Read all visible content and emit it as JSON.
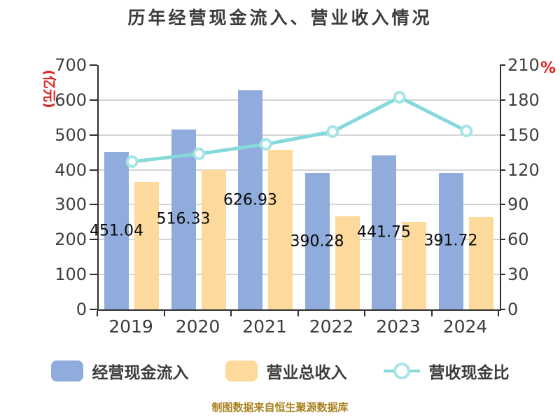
{
  "title": "历年经营现金流入、营业收入情况",
  "footer": "制图数据来自恒生聚源数据库",
  "axis_left_unit": "(亿元)",
  "axis_right_unit": "%",
  "colors": {
    "bar_cash": "#8FACDC",
    "bar_revenue": "#FDDA9B",
    "ratio_line": "#86D9D9",
    "marker_ring": "#A6E5E5",
    "marker_fill": "#FFFFFF",
    "axis_unit_red": "#E02222",
    "footer_gold": "#A9821F",
    "title_text": "#3C3C3C"
  },
  "legend": [
    {
      "label": "经营现金流入",
      "type": "bar"
    },
    {
      "label": "营业总收入",
      "type": "bar"
    },
    {
      "label": "营收现金比",
      "type": "line"
    }
  ],
  "chart_data": {
    "type": "bar+line combo",
    "categories": [
      "2019",
      "2020",
      "2021",
      "2022",
      "2023",
      "2024"
    ],
    "series": [
      {
        "name": "经营现金流入",
        "type": "bar",
        "axis": "left",
        "values": [
          451.04,
          516.33,
          626.93,
          390.28,
          441.75,
          391.72
        ],
        "value_labels": [
          "451.04",
          "516.33",
          "626.93",
          "390.28",
          "441.75",
          "391.72"
        ]
      },
      {
        "name": "营业总收入",
        "type": "bar",
        "axis": "left",
        "values": [
          365,
          400,
          457,
          266,
          250,
          264
        ]
      },
      {
        "name": "营收现金比",
        "type": "line",
        "axis": "right",
        "values": [
          127.0,
          133.7,
          142.0,
          152.8,
          182.4,
          153.4
        ]
      }
    ],
    "ylabel_left": "(亿元)",
    "ylabel_right": "%",
    "ylim_left": [
      0,
      700
    ],
    "ylim_right": [
      0,
      210
    ],
    "yticks_left": [
      0,
      100,
      200,
      300,
      400,
      500,
      600,
      700
    ],
    "yticks_right": [
      0,
      30,
      60,
      90,
      120,
      150,
      180,
      210
    ],
    "grid": true,
    "legend_position": "bottom"
  }
}
